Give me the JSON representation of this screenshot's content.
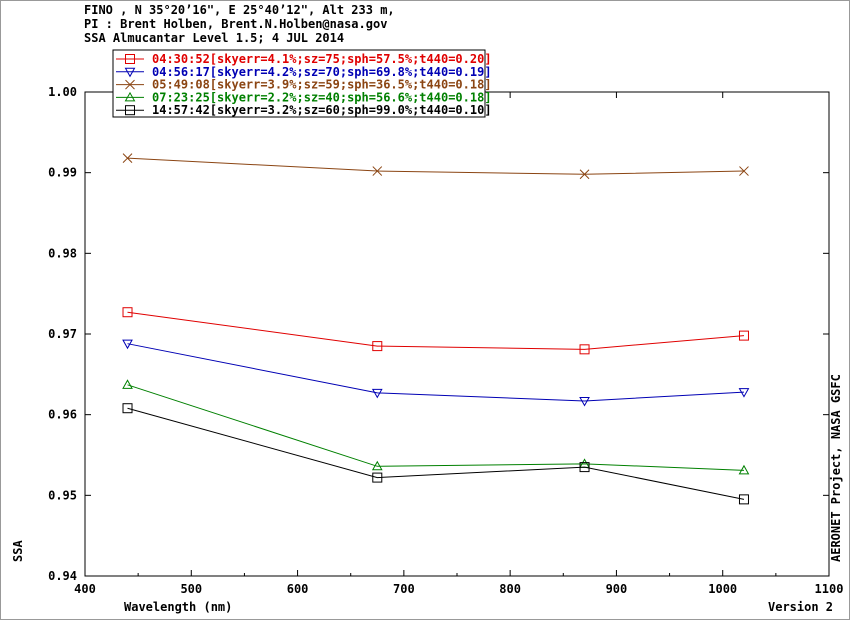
{
  "header": {
    "line1": "FINO , N 35°20’16\", E 25°40’12\", Alt 233 m,",
    "line2": "PI : Brent Holben, Brent.N.Holben@nasa.gov",
    "line3": "SSA Almucantar Level 1.5; 4 JUL 2014"
  },
  "footer": {
    "xlabel": "Wavelength (nm)",
    "version": "Version 2",
    "credit": "AERONET Project, NASA GSFC"
  },
  "chart_data": {
    "type": "line",
    "xlabel": "Wavelength (nm)",
    "ylabel": "SSA",
    "xlim": [
      400,
      1100
    ],
    "ylim": [
      0.94,
      1.0
    ],
    "x_ticks": [
      "400",
      "500",
      "600",
      "700",
      "800",
      "900",
      "1000",
      "1100"
    ],
    "y_ticks": [
      "0.94",
      "0.95",
      "0.96",
      "0.97",
      "0.98",
      "0.99",
      "1.00"
    ],
    "grid": false,
    "legend_position": "top-left",
    "series": [
      {
        "name": "04:30:52[skyerr=4.1%;sz=75;sph=57.5%;t440=0.20]",
        "color": "#e00000",
        "marker": "square",
        "x": [
          440,
          675,
          870,
          1020
        ],
        "y": [
          0.9727,
          0.9685,
          0.9681,
          0.9698
        ]
      },
      {
        "name": "04:56:17[skyerr=4.2%;sz=70;sph=69.8%;t440=0.19]",
        "color": "#0000b4",
        "marker": "triangle-down",
        "x": [
          440,
          675,
          870,
          1020
        ],
        "y": [
          0.9688,
          0.9627,
          0.9617,
          0.9628
        ]
      },
      {
        "name": "05:49:08[skyerr=3.9%;sz=59;sph=36.5%;t440=0.18]",
        "color": "#8b4513",
        "marker": "x",
        "x": [
          440,
          675,
          870,
          1020
        ],
        "y": [
          0.9918,
          0.9902,
          0.9898,
          0.9902
        ]
      },
      {
        "name": "07:23:25[skyerr=2.2%;sz=40;sph=56.6%;t440=0.18]",
        "color": "#008000",
        "marker": "triangle-up",
        "x": [
          440,
          675,
          870,
          1020
        ],
        "y": [
          0.9637,
          0.9536,
          0.9539,
          0.9531
        ]
      },
      {
        "name": "14:57:42[skyerr=3.2%;sz=60;sph=99.0%;t440=0.10]",
        "color": "#000000",
        "marker": "square",
        "x": [
          440,
          675,
          870,
          1020
        ],
        "y": [
          0.9608,
          0.9522,
          0.9535,
          0.9495
        ]
      }
    ]
  }
}
